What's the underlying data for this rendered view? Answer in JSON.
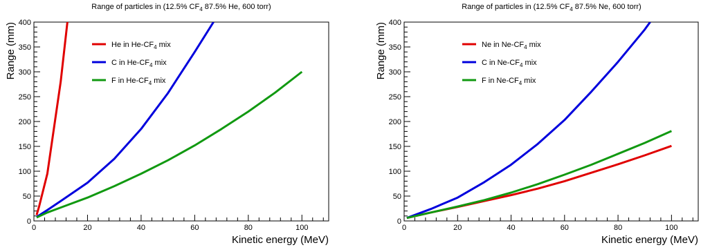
{
  "chart_data": [
    {
      "type": "line",
      "title": {
        "pre": "Range of particles in (12.5% CF",
        "sub": "4",
        "post": " 87.5% He, 600 torr)"
      },
      "xlabel": "Kinetic energy (MeV)",
      "ylabel": "Range (mm)",
      "xlim": [
        0,
        110
      ],
      "ylim": [
        0,
        400
      ],
      "x_ticks": [
        0,
        20,
        40,
        60,
        80,
        100
      ],
      "y_ticks": [
        0,
        50,
        100,
        150,
        200,
        250,
        300,
        350,
        400
      ],
      "legend": "top-left",
      "series": [
        {
          "name": {
            "pre": "He in He-CF",
            "sub": "4",
            "post": " mix"
          },
          "color": "#e00000",
          "x": [
            1,
            2,
            5,
            10,
            12.5
          ],
          "y": [
            12,
            30,
            95,
            280,
            400
          ]
        },
        {
          "name": {
            "pre": "C in He-CF",
            "sub": "4",
            "post": " mix"
          },
          "color": "#0000dd",
          "x": [
            1,
            5,
            10,
            20,
            30,
            40,
            50,
            60,
            67
          ],
          "y": [
            8,
            22,
            40,
            77,
            125,
            185,
            257,
            340,
            400
          ]
        },
        {
          "name": {
            "pre": "F in He-CF",
            "sub": "4",
            "post": " mix"
          },
          "color": "#119911",
          "x": [
            1,
            5,
            10,
            20,
            30,
            40,
            50,
            60,
            70,
            80,
            90,
            100
          ],
          "y": [
            7,
            17,
            27,
            47,
            70,
            95,
            122,
            152,
            185,
            220,
            258,
            300
          ]
        }
      ]
    },
    {
      "type": "line",
      "title": {
        "pre": "Range of particles in (12.5% CF",
        "sub": "4",
        "post": " 87.5% Ne, 600 torr)"
      },
      "xlabel": "Kinetic energy (MeV)",
      "ylabel": "Range (mm)",
      "xlim": [
        0,
        110
      ],
      "ylim": [
        0,
        400
      ],
      "x_ticks": [
        0,
        20,
        40,
        60,
        80,
        100
      ],
      "y_ticks": [
        0,
        50,
        100,
        150,
        200,
        250,
        300,
        350,
        400
      ],
      "legend": "top-left",
      "series": [
        {
          "name": {
            "pre": "Ne in Ne-CF",
            "sub": "4",
            "post": " mix"
          },
          "color": "#e00000",
          "x": [
            1,
            10,
            20,
            30,
            40,
            50,
            60,
            70,
            80,
            90,
            100
          ],
          "y": [
            6,
            17,
            28,
            40,
            52,
            65,
            80,
            97,
            114,
            132,
            151
          ]
        },
        {
          "name": {
            "pre": "C in Ne-CF",
            "sub": "4",
            "post": " mix"
          },
          "color": "#0000dd",
          "x": [
            1,
            10,
            20,
            30,
            40,
            50,
            60,
            70,
            80,
            90,
            92
          ],
          "y": [
            6,
            24,
            47,
            78,
            113,
            155,
            203,
            260,
            320,
            385,
            400
          ]
        },
        {
          "name": {
            "pre": "F in Ne-CF",
            "sub": "4",
            "post": " mix"
          },
          "color": "#119911",
          "x": [
            1,
            10,
            20,
            30,
            40,
            50,
            60,
            70,
            80,
            90,
            100
          ],
          "y": [
            6,
            17,
            29,
            42,
            57,
            74,
            93,
            113,
            135,
            157,
            181
          ]
        }
      ]
    }
  ]
}
